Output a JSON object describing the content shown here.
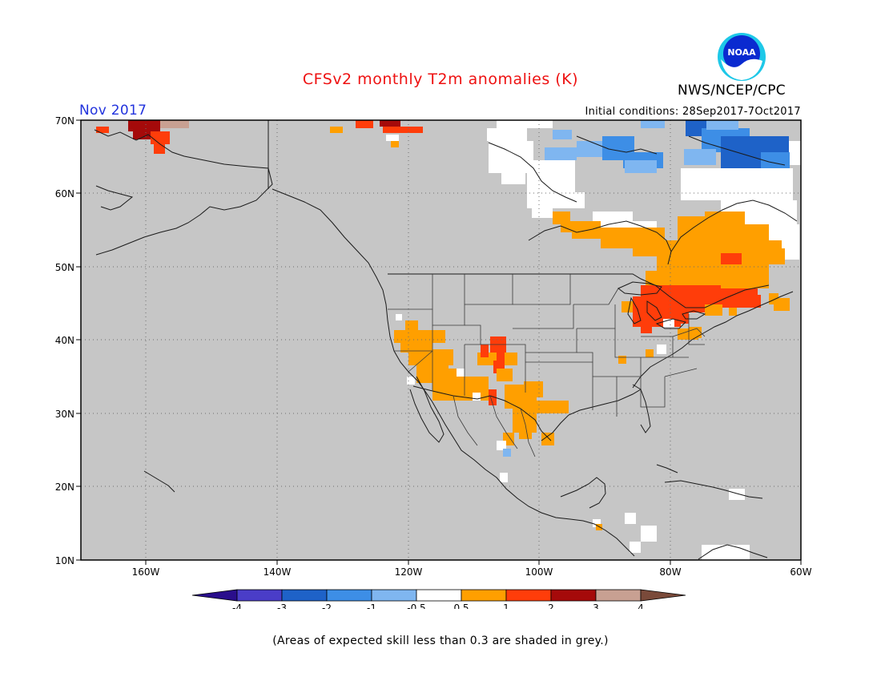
{
  "title": "CFSv2 monthly T2m anomalies (K)",
  "agency": "NWS/NCEP/CPC",
  "logo_text": "NOAA",
  "period": "Nov 2017",
  "initial_conditions": "Initial conditions: 28Sep2017-7Oct2017",
  "footnote": "(Areas of expected skill less than 0.3 are shaded in grey.)",
  "colors": {
    "title": "#ee1111",
    "period": "#2233dd",
    "skill_mask": "#c6c6c6",
    "neutral": "#ffffff"
  },
  "map": {
    "lon_labels": [
      "160W",
      "140W",
      "120W",
      "100W",
      "80W",
      "60W"
    ],
    "lat_labels": [
      "70N",
      "60N",
      "50N",
      "40N",
      "30N",
      "20N",
      "10N"
    ]
  },
  "colorbar": {
    "labels": [
      "-4",
      "-3",
      "-2",
      "-1",
      "-0.5",
      "0.5",
      "1",
      "2",
      "3",
      "4"
    ],
    "colors": [
      "#2a0e8c",
      "#4a3dc8",
      "#1e62c8",
      "#3d8ee6",
      "#7fb6f0",
      "#ffffff",
      "#ff9f00",
      "#ff3d0a",
      "#a50a0a",
      "#c8a092",
      "#7a4a3a"
    ]
  },
  "anomaly_regions": [
    {
      "name": "Northeast US / Great Lakes",
      "class": "1 to 2"
    },
    {
      "name": "Quebec / Ontario",
      "class": "0.5 to 1"
    },
    {
      "name": "Southwest US",
      "class": "0.5 to 1"
    },
    {
      "name": "Northern Alaska coast",
      "class": "2 to 3"
    },
    {
      "name": "Nunavut / Baffin",
      "class": "-1 to -0.5"
    }
  ]
}
